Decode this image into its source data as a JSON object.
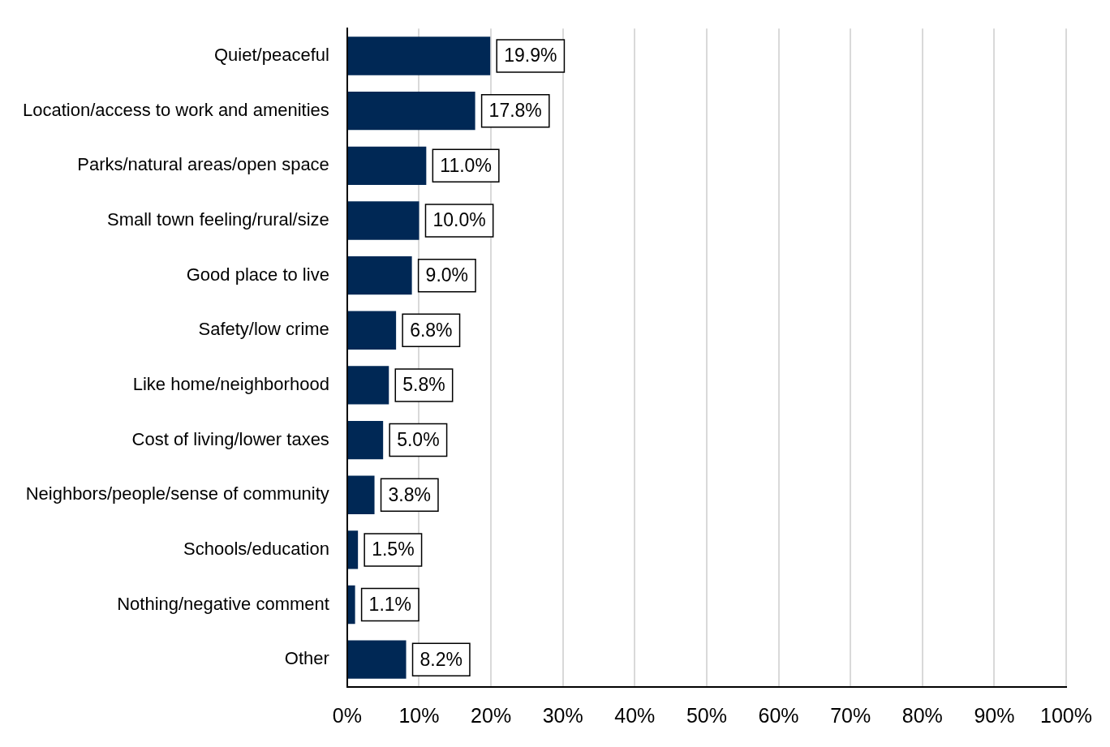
{
  "chart_data": {
    "type": "bar",
    "orientation": "horizontal",
    "categories": [
      "Quiet/peaceful",
      "Location/access to work and amenities",
      "Parks/natural areas/open space",
      "Small town feeling/rural/size",
      "Good place to live",
      "Safety/low crime",
      "Like home/neighborhood",
      "Cost of living/lower taxes",
      "Neighbors/people/sense of community",
      "Schools/education",
      "Nothing/negative comment",
      "Other"
    ],
    "values": [
      19.9,
      17.8,
      11.0,
      10.0,
      9.0,
      6.8,
      5.8,
      5.0,
      3.8,
      1.5,
      1.1,
      8.2
    ],
    "value_labels": [
      "19.9%",
      "17.8%",
      "11.0%",
      "10.0%",
      "9.0%",
      "6.8%",
      "5.8%",
      "5.0%",
      "3.8%",
      "1.5%",
      "1.1%",
      "8.2%"
    ],
    "color": "#002855",
    "xlim": [
      0,
      100
    ],
    "xticks": [
      {
        "value": 0,
        "label": "0%"
      },
      {
        "value": 10,
        "label": "10%"
      },
      {
        "value": 20,
        "label": "20%"
      },
      {
        "value": 30,
        "label": "30%"
      },
      {
        "value": 40,
        "label": "40%"
      },
      {
        "value": 50,
        "label": "50%"
      },
      {
        "value": 60,
        "label": "60%"
      },
      {
        "value": 70,
        "label": "70%"
      },
      {
        "value": 80,
        "label": "80%"
      },
      {
        "value": 90,
        "label": "90%"
      },
      {
        "value": 100,
        "label": "100%"
      }
    ],
    "grid": "x",
    "legend": false
  }
}
